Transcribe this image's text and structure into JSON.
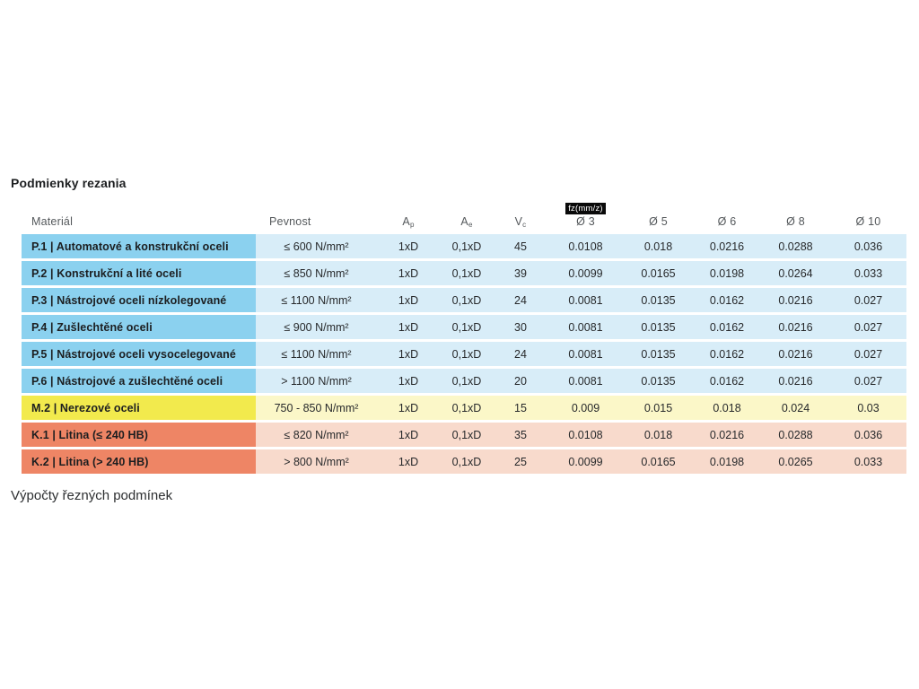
{
  "page": {
    "title": "Podmienky rezania",
    "footer_caption": "Výpočty řezných podmínek"
  },
  "table": {
    "columns": [
      {
        "key": "material",
        "label": "Materiál"
      },
      {
        "key": "pevnost",
        "label": "Pevnost"
      },
      {
        "key": "ap",
        "label": "A",
        "sub": "p"
      },
      {
        "key": "ae",
        "label": "A",
        "sub": "e"
      },
      {
        "key": "vc",
        "label": "V",
        "sub": "c"
      },
      {
        "key": "d3",
        "label": "Ø 3",
        "badge": "fz(mm/z)"
      },
      {
        "key": "d5",
        "label": "Ø 5"
      },
      {
        "key": "d6",
        "label": "Ø 6"
      },
      {
        "key": "d8",
        "label": "Ø 8"
      },
      {
        "key": "d10",
        "label": "Ø 10"
      }
    ],
    "rows": [
      {
        "theme": "blue",
        "cells": [
          "P.1 | Automatové a konstrukční oceli",
          "≤ 600 N/mm²",
          "1xD",
          "0,1xD",
          "45",
          "0.0108",
          "0.018",
          "0.0216",
          "0.0288",
          "0.036"
        ]
      },
      {
        "theme": "blue",
        "cells": [
          "P.2 | Konstrukční a lité oceli",
          "≤ 850 N/mm²",
          "1xD",
          "0,1xD",
          "39",
          "0.0099",
          "0.0165",
          "0.0198",
          "0.0264",
          "0.033"
        ]
      },
      {
        "theme": "blue",
        "cells": [
          "P.3 | Nástrojové oceli nízkolegované",
          "≤ 1100 N/mm²",
          "1xD",
          "0,1xD",
          "24",
          "0.0081",
          "0.0135",
          "0.0162",
          "0.0216",
          "0.027"
        ]
      },
      {
        "theme": "blue",
        "cells": [
          "P.4 | Zušlechtěné oceli",
          "≤ 900 N/mm²",
          "1xD",
          "0,1xD",
          "30",
          "0.0081",
          "0.0135",
          "0.0162",
          "0.0216",
          "0.027"
        ]
      },
      {
        "theme": "blue",
        "cells": [
          "P.5 | Nástrojové oceli vysocelegované",
          "≤ 1100 N/mm²",
          "1xD",
          "0,1xD",
          "24",
          "0.0081",
          "0.0135",
          "0.0162",
          "0.0216",
          "0.027"
        ]
      },
      {
        "theme": "blue",
        "cells": [
          "P.6 | Nástrojové a zušlechtěné oceli",
          "> 1100 N/mm²",
          "1xD",
          "0,1xD",
          "20",
          "0.0081",
          "0.0135",
          "0.0162",
          "0.0216",
          "0.027"
        ]
      },
      {
        "theme": "yellow",
        "cells": [
          "M.2 | Nerezové oceli",
          "750 - 850 N/mm²",
          "1xD",
          "0,1xD",
          "15",
          "0.009",
          "0.015",
          "0.018",
          "0.024",
          "0.03"
        ]
      },
      {
        "theme": "orange",
        "cells": [
          "K.1 | Litina (≤ 240 HB)",
          "≤ 820 N/mm²",
          "1xD",
          "0,1xD",
          "35",
          "0.0108",
          "0.018",
          "0.0216",
          "0.0288",
          "0.036"
        ]
      },
      {
        "theme": "orange",
        "cells": [
          "K.2 | Litina (> 240 HB)",
          "> 800 N/mm²",
          "1xD",
          "0,1xD",
          "25",
          "0.0099",
          "0.0165",
          "0.0198",
          "0.0265",
          "0.033"
        ]
      }
    ]
  },
  "colors": {
    "header_text": "#54585b",
    "body_text": "#27292b",
    "material_text": "#1c1e20",
    "badge_bg": "#0a0a0a",
    "badge_text": "#ffffff",
    "row_themes": {
      "blue": {
        "label_bg": "#8bd1ef",
        "cell_bg": "#d8edf8"
      },
      "yellow": {
        "label_bg": "#f2ea4d",
        "cell_bg": "#fbf7c8"
      },
      "orange": {
        "label_bg": "#ee8565",
        "cell_bg": "#f8dacc"
      }
    }
  }
}
